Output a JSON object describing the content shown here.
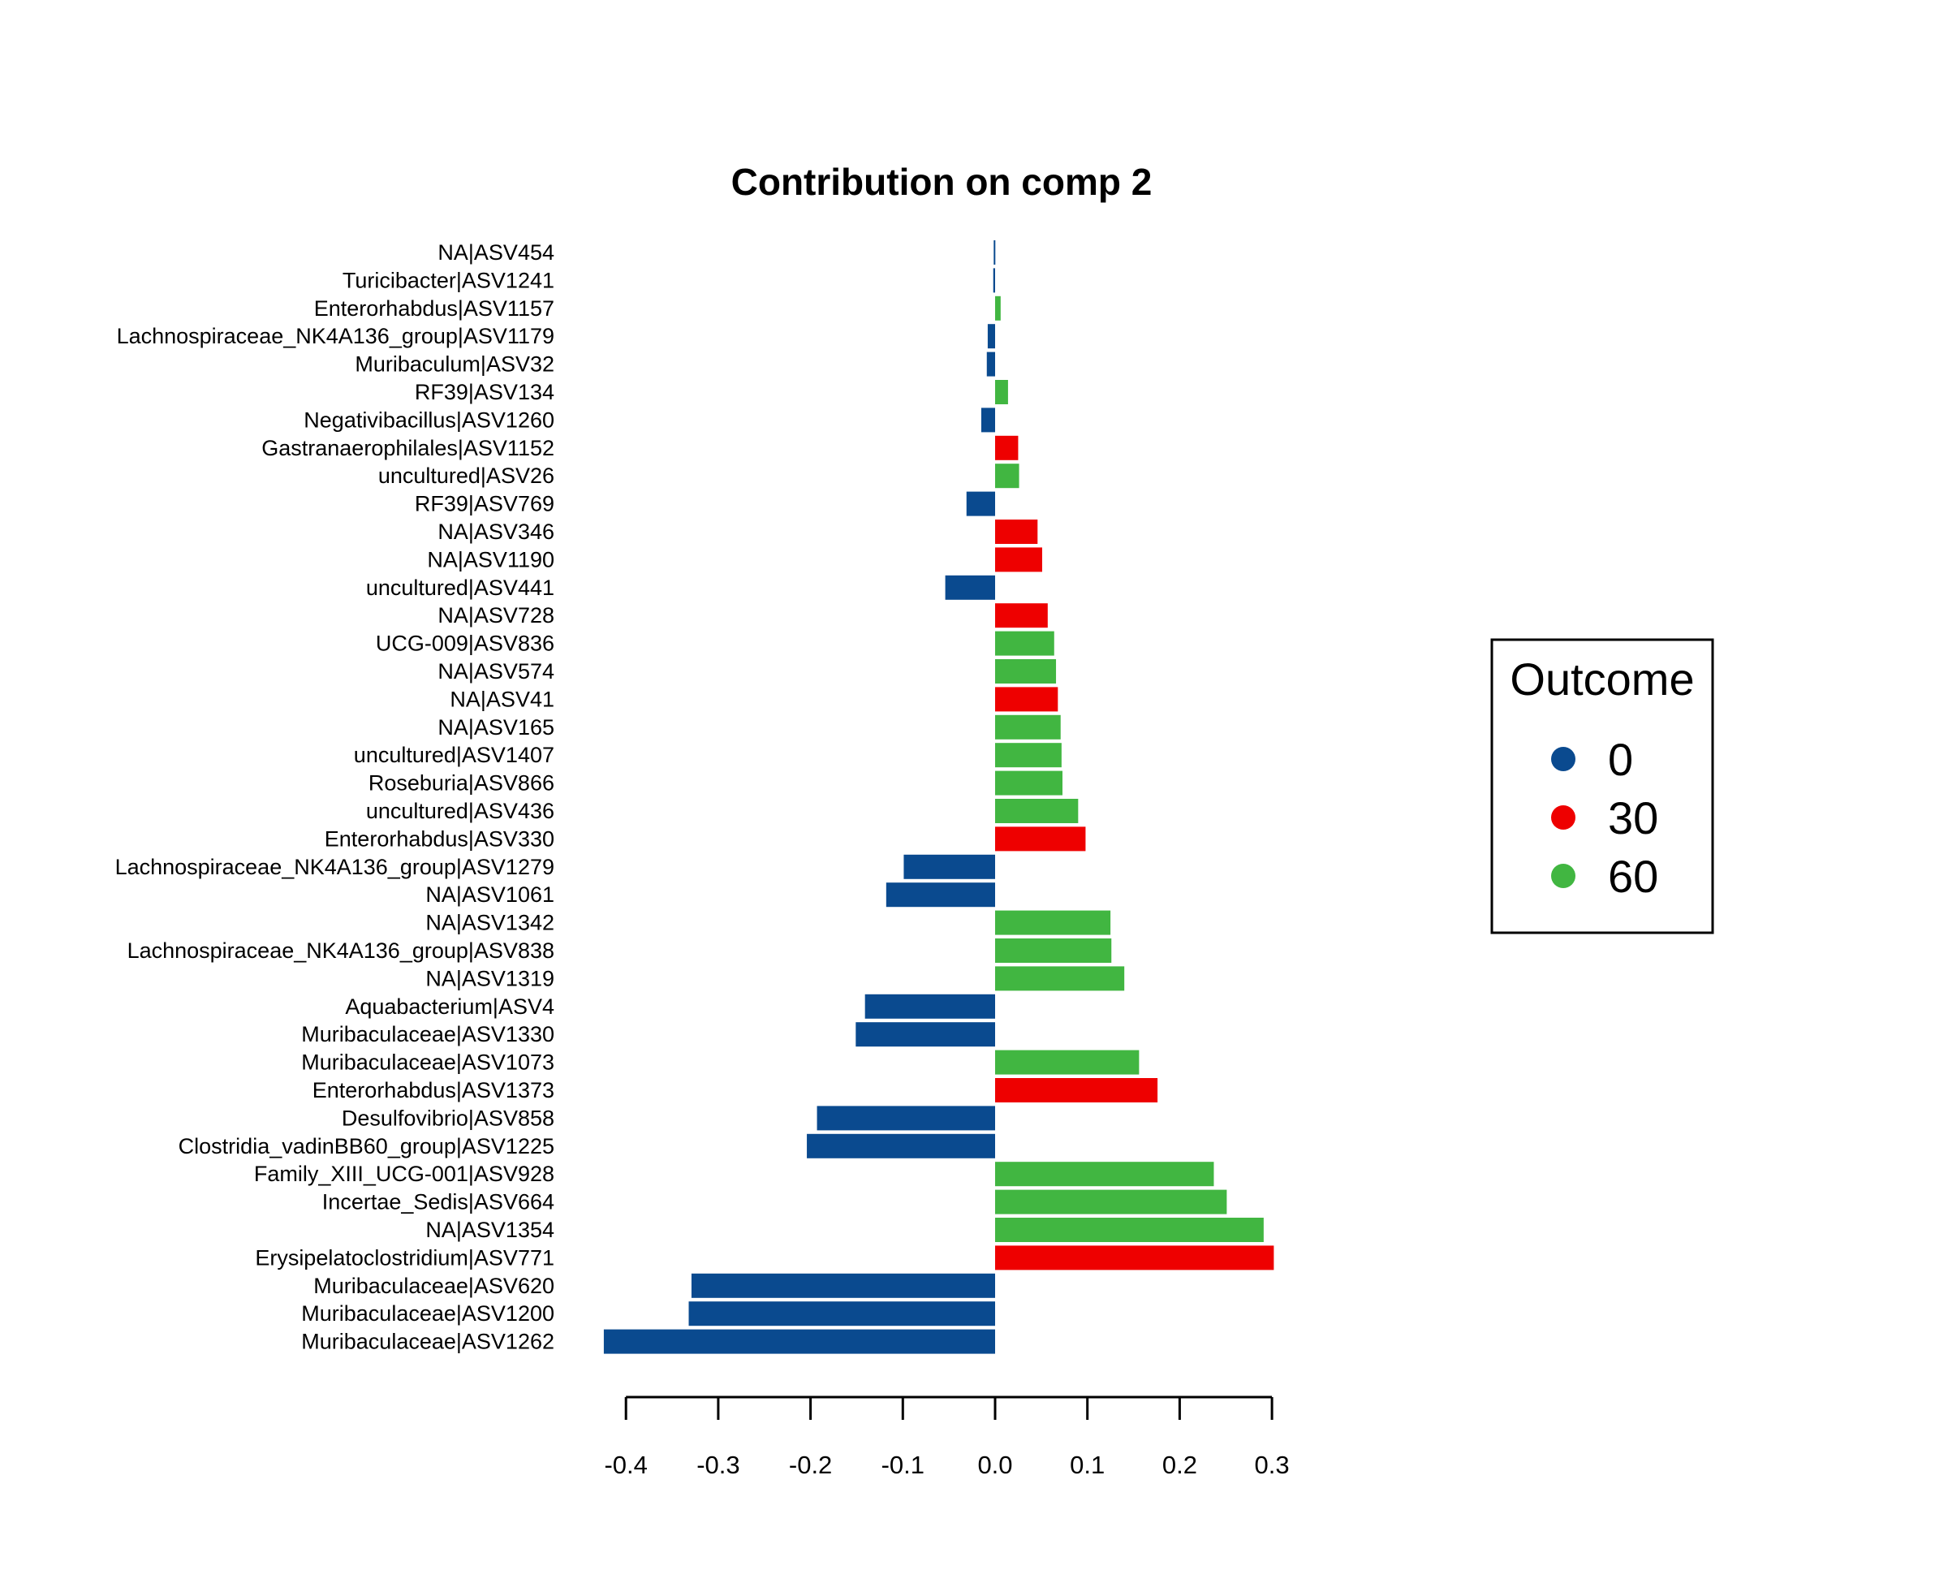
{
  "chart_data": {
    "type": "bar",
    "orientation": "horizontal",
    "title": "Contribution on comp 2",
    "xlabel": "",
    "ylabel": "",
    "xlim": [
      -0.4,
      0.3
    ],
    "xticks": [
      -0.4,
      -0.3,
      -0.2,
      -0.1,
      0.0,
      0.1,
      0.2,
      0.3
    ],
    "xtick_labels": [
      "-0.4",
      "-0.3",
      "-0.2",
      "-0.1",
      "0.0",
      "0.1",
      "0.2",
      "0.3"
    ],
    "grid": false,
    "legend": {
      "title": "Outcome",
      "placement": "right",
      "entries": [
        {
          "label": "0",
          "color": "#0a4a8f"
        },
        {
          "label": "30",
          "color": "#ee0000"
        },
        {
          "label": "60",
          "color": "#41b641"
        }
      ]
    },
    "bars": [
      {
        "label": "NA|ASV454",
        "value": -0.0015,
        "group": "0"
      },
      {
        "label": "Turicibacter|ASV1241",
        "value": -0.002,
        "group": "0"
      },
      {
        "label": "Enterorhabdus|ASV1157",
        "value": 0.006,
        "group": "60"
      },
      {
        "label": "Lachnospiraceae_NK4A136_group|ASV1179",
        "value": -0.008,
        "group": "0"
      },
      {
        "label": "Muribaculum|ASV32",
        "value": -0.009,
        "group": "0"
      },
      {
        "label": "RF39|ASV134",
        "value": 0.014,
        "group": "60"
      },
      {
        "label": "Negativibacillus|ASV1260",
        "value": -0.015,
        "group": "0"
      },
      {
        "label": "Gastranaerophilales|ASV1152",
        "value": 0.025,
        "group": "30"
      },
      {
        "label": "uncultured|ASV26",
        "value": 0.026,
        "group": "60"
      },
      {
        "label": "RF39|ASV769",
        "value": -0.031,
        "group": "0"
      },
      {
        "label": "NA|ASV346",
        "value": 0.046,
        "group": "30"
      },
      {
        "label": "NA|ASV1190",
        "value": 0.051,
        "group": "30"
      },
      {
        "label": "uncultured|ASV441",
        "value": -0.054,
        "group": "0"
      },
      {
        "label": "NA|ASV728",
        "value": 0.057,
        "group": "30"
      },
      {
        "label": "UCG-009|ASV836",
        "value": 0.064,
        "group": "60"
      },
      {
        "label": "NA|ASV574",
        "value": 0.066,
        "group": "60"
      },
      {
        "label": "NA|ASV41",
        "value": 0.068,
        "group": "30"
      },
      {
        "label": "NA|ASV165",
        "value": 0.071,
        "group": "60"
      },
      {
        "label": "uncultured|ASV1407",
        "value": 0.072,
        "group": "60"
      },
      {
        "label": "Roseburia|ASV866",
        "value": 0.073,
        "group": "60"
      },
      {
        "label": "uncultured|ASV436",
        "value": 0.09,
        "group": "60"
      },
      {
        "label": "Enterorhabdus|ASV330",
        "value": 0.098,
        "group": "30"
      },
      {
        "label": "Lachnospiraceae_NK4A136_group|ASV1279",
        "value": -0.099,
        "group": "0"
      },
      {
        "label": "NA|ASV1061",
        "value": -0.118,
        "group": "0"
      },
      {
        "label": "NA|ASV1342",
        "value": 0.125,
        "group": "60"
      },
      {
        "label": "Lachnospiraceae_NK4A136_group|ASV838",
        "value": 0.126,
        "group": "60"
      },
      {
        "label": "NA|ASV1319",
        "value": 0.14,
        "group": "60"
      },
      {
        "label": "Aquabacterium|ASV4",
        "value": -0.141,
        "group": "0"
      },
      {
        "label": "Muribaculaceae|ASV1330",
        "value": -0.151,
        "group": "0"
      },
      {
        "label": "Muribaculaceae|ASV1073",
        "value": 0.156,
        "group": "60"
      },
      {
        "label": "Enterorhabdus|ASV1373",
        "value": 0.176,
        "group": "30"
      },
      {
        "label": "Desulfovibrio|ASV858",
        "value": -0.193,
        "group": "0"
      },
      {
        "label": "Clostridia_vadinBB60_group|ASV1225",
        "value": -0.204,
        "group": "0"
      },
      {
        "label": "Family_XIII_UCG-001|ASV928",
        "value": 0.237,
        "group": "60"
      },
      {
        "label": "Incertae_Sedis|ASV664",
        "value": 0.251,
        "group": "60"
      },
      {
        "label": "NA|ASV1354",
        "value": 0.291,
        "group": "60"
      },
      {
        "label": "Erysipelatoclostridium|ASV771",
        "value": 0.302,
        "group": "30"
      },
      {
        "label": "Muribaculaceae|ASV620",
        "value": -0.329,
        "group": "0"
      },
      {
        "label": "Muribaculaceae|ASV1200",
        "value": -0.332,
        "group": "0"
      },
      {
        "label": "Muribaculaceae|ASV1262",
        "value": -0.424,
        "group": "0"
      }
    ]
  }
}
